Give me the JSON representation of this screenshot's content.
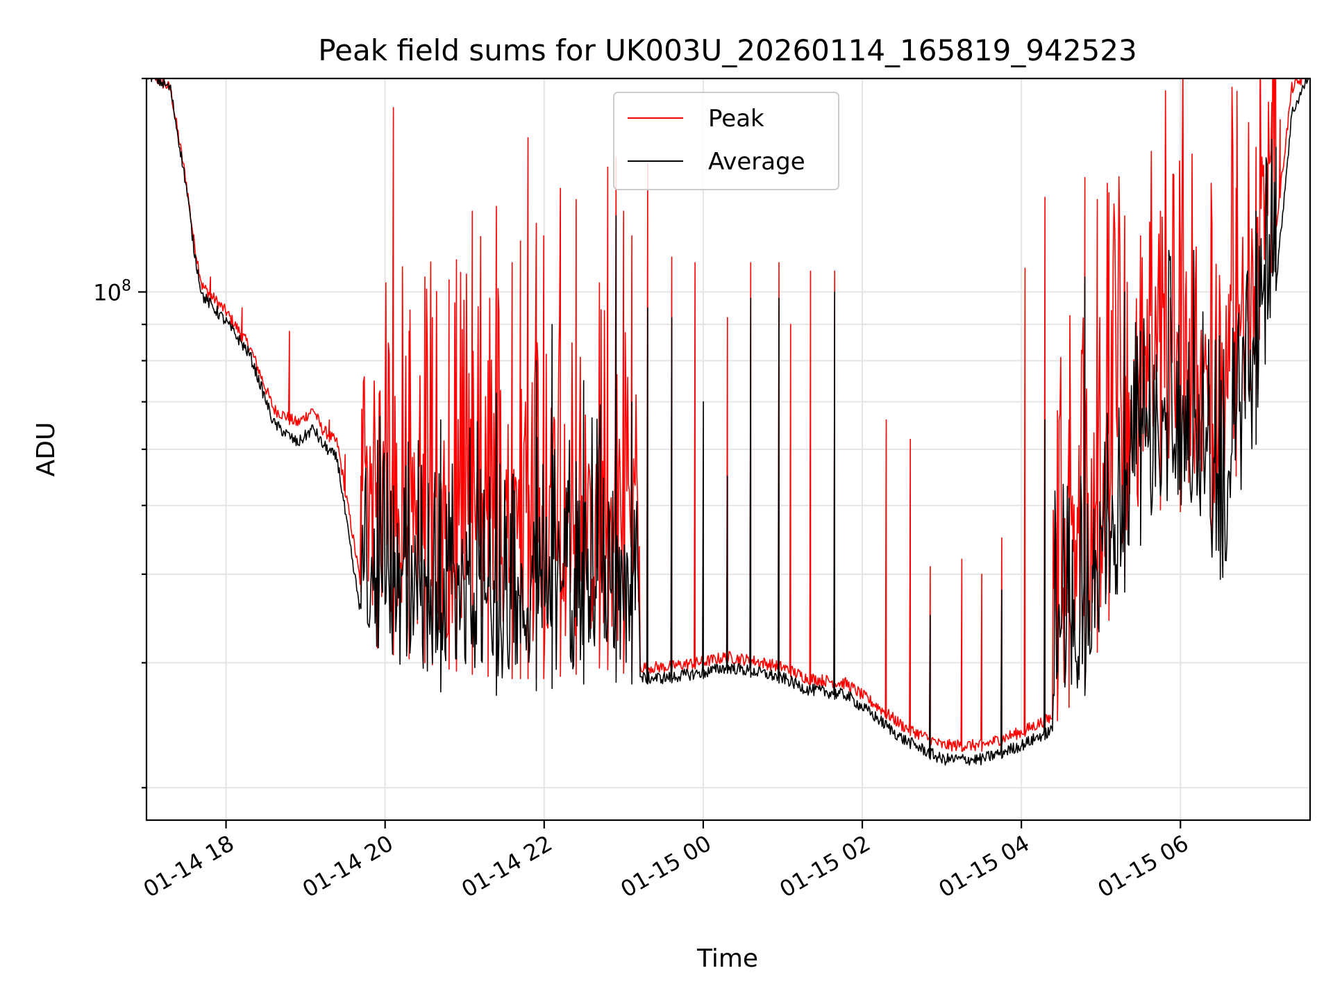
{
  "chart_data": {
    "type": "line",
    "title": "Peak field sums for UK003U_20260114_165819_942523",
    "xlabel": "Time",
    "ylabel": "ADU",
    "yscale": "log",
    "ylim": [
      18000000,
      200000000
    ],
    "xlim_hours": [
      17.0,
      31.63
    ],
    "x_ticks": [
      {
        "hour": 18,
        "label": "01-14 18"
      },
      {
        "hour": 20,
        "label": "01-14 20"
      },
      {
        "hour": 22,
        "label": "01-14 22"
      },
      {
        "hour": 24,
        "label": "01-15 00"
      },
      {
        "hour": 26,
        "label": "01-15 02"
      },
      {
        "hour": 28,
        "label": "01-15 04"
      },
      {
        "hour": 30,
        "label": "01-15 06"
      }
    ],
    "y_ticks": [
      {
        "value": 100000000,
        "base": "10",
        "exp": "8"
      }
    ],
    "grid": true,
    "legend": {
      "position": "top-center",
      "entries": [
        "Peak",
        "Average"
      ]
    },
    "series": [
      {
        "name": "Peak",
        "color": "#ff0000",
        "baseline": [
          [
            17.0,
            200000000
          ],
          [
            17.3,
            190000000
          ],
          [
            17.5,
            140000000
          ],
          [
            17.6,
            115000000
          ],
          [
            17.7,
            100000000
          ],
          [
            18.0,
            92000000
          ],
          [
            18.3,
            82000000
          ],
          [
            18.6,
            67000000
          ],
          [
            18.9,
            64000000
          ],
          [
            19.1,
            67000000
          ],
          [
            19.2,
            63000000
          ],
          [
            19.4,
            60000000
          ],
          [
            19.6,
            44000000
          ],
          [
            19.8,
            32000000
          ],
          [
            20.0,
            31000000
          ],
          [
            20.5,
            30000000
          ],
          [
            21.0,
            29000000
          ],
          [
            21.5,
            28500000
          ],
          [
            22.0,
            28500000
          ],
          [
            22.5,
            29000000
          ],
          [
            22.7,
            29500000
          ],
          [
            23.0,
            29000000
          ],
          [
            23.5,
            29000000
          ],
          [
            24.0,
            29500000
          ],
          [
            24.3,
            30000000
          ],
          [
            24.7,
            29500000
          ],
          [
            25.0,
            29000000
          ],
          [
            25.3,
            28000000
          ],
          [
            25.8,
            27500000
          ],
          [
            26.2,
            25500000
          ],
          [
            26.5,
            24000000
          ],
          [
            27.0,
            22500000
          ],
          [
            27.5,
            22500000
          ],
          [
            28.0,
            23500000
          ],
          [
            28.5,
            25000000
          ],
          [
            28.8,
            28000000
          ],
          [
            29.0,
            32000000
          ],
          [
            29.5,
            46000000
          ],
          [
            29.8,
            50000000
          ],
          [
            30.0,
            49000000
          ],
          [
            30.3,
            46000000
          ],
          [
            30.5,
            45000000
          ],
          [
            30.7,
            55000000
          ],
          [
            31.0,
            75000000
          ],
          [
            31.2,
            120000000
          ],
          [
            31.4,
            190000000
          ],
          [
            31.63,
            200000000
          ]
        ],
        "spikes": [
          [
            17.8,
            105000000
          ],
          [
            18.2,
            95000000
          ],
          [
            18.8,
            88000000
          ],
          [
            19.3,
            66000000
          ],
          [
            19.5,
            59000000
          ],
          [
            19.7,
            55000000
          ],
          [
            19.9,
            42000000
          ],
          [
            20.1,
            182000000
          ],
          [
            20.3,
            88000000
          ],
          [
            20.5,
            105000000
          ],
          [
            20.6,
            92000000
          ],
          [
            20.8,
            104000000
          ],
          [
            20.9,
            111000000
          ],
          [
            21.1,
            130000000
          ],
          [
            21.3,
            80000000
          ],
          [
            21.4,
            132000000
          ],
          [
            21.6,
            110000000
          ],
          [
            21.7,
            118000000
          ],
          [
            21.8,
            165000000
          ],
          [
            21.9,
            125000000
          ],
          [
            22.0,
            120000000
          ],
          [
            22.2,
            140000000
          ],
          [
            22.4,
            135000000
          ],
          [
            22.7,
            103000000
          ],
          [
            22.8,
            150000000
          ],
          [
            22.9,
            155000000
          ],
          [
            23.0,
            130000000
          ],
          [
            23.1,
            120000000
          ],
          [
            23.3,
            152000000
          ],
          [
            23.6,
            112000000
          ],
          [
            23.9,
            110000000
          ],
          [
            24.3,
            92000000
          ],
          [
            24.6,
            110000000
          ],
          [
            24.95,
            110000000
          ],
          [
            25.1,
            90000000
          ],
          [
            25.35,
            107000000
          ],
          [
            25.65,
            107000000
          ],
          [
            26.3,
            66000000
          ],
          [
            26.6,
            62000000
          ],
          [
            26.85,
            41000000
          ],
          [
            27.25,
            42000000
          ],
          [
            27.5,
            40000000
          ],
          [
            27.75,
            45000000
          ],
          [
            28.05,
            108000000
          ],
          [
            28.3,
            136000000
          ],
          [
            28.45,
            68000000
          ],
          [
            28.6,
            66000000
          ],
          [
            28.8,
            145000000
          ],
          [
            28.95,
            135000000
          ],
          [
            29.1,
            138000000
          ],
          [
            29.3,
            128000000
          ],
          [
            29.5,
            120000000
          ],
          [
            29.75,
            130000000
          ],
          [
            30.0,
            112000000
          ],
          [
            30.4,
            125000000
          ],
          [
            30.7,
            140000000
          ],
          [
            30.95,
            160000000
          ],
          [
            31.15,
            185000000
          ],
          [
            31.25,
            175000000
          ]
        ]
      },
      {
        "name": "Average",
        "color": "#000000",
        "baseline": [
          [
            17.0,
            200000000
          ],
          [
            17.3,
            190000000
          ],
          [
            17.5,
            138000000
          ],
          [
            17.6,
            112000000
          ],
          [
            17.7,
            97000000
          ],
          [
            18.0,
            89000000
          ],
          [
            18.3,
            80000000
          ],
          [
            18.6,
            64000000
          ],
          [
            18.9,
            60000000
          ],
          [
            19.1,
            63000000
          ],
          [
            19.2,
            60000000
          ],
          [
            19.4,
            57000000
          ],
          [
            19.6,
            40000000
          ],
          [
            19.8,
            29500000
          ],
          [
            20.0,
            28000000
          ],
          [
            20.5,
            27500000
          ],
          [
            21.0,
            27000000
          ],
          [
            21.5,
            27000000
          ],
          [
            22.0,
            27500000
          ],
          [
            22.5,
            28000000
          ],
          [
            22.7,
            28500000
          ],
          [
            23.0,
            28000000
          ],
          [
            23.5,
            28000000
          ],
          [
            24.0,
            28500000
          ],
          [
            24.3,
            29000000
          ],
          [
            24.7,
            28500000
          ],
          [
            25.0,
            28000000
          ],
          [
            25.3,
            27000000
          ],
          [
            25.8,
            26500000
          ],
          [
            26.2,
            24500000
          ],
          [
            26.5,
            23000000
          ],
          [
            27.0,
            21500000
          ],
          [
            27.5,
            21500000
          ],
          [
            28.0,
            22500000
          ],
          [
            28.5,
            24000000
          ],
          [
            28.8,
            27000000
          ],
          [
            29.0,
            30000000
          ],
          [
            29.5,
            44000000
          ],
          [
            29.8,
            48000000
          ],
          [
            30.0,
            47000000
          ],
          [
            30.3,
            44000000
          ],
          [
            30.5,
            36000000
          ],
          [
            30.7,
            44000000
          ],
          [
            31.0,
            65000000
          ],
          [
            31.2,
            100000000
          ],
          [
            31.4,
            175000000
          ],
          [
            31.63,
            200000000
          ]
        ],
        "spikes": [
          [
            20.7,
            66000000
          ],
          [
            21.4,
            72000000
          ],
          [
            21.9,
            80000000
          ],
          [
            22.1,
            90000000
          ],
          [
            22.5,
            75000000
          ],
          [
            22.9,
            128000000
          ],
          [
            23.1,
            70000000
          ],
          [
            23.3,
            95000000
          ],
          [
            23.6,
            92000000
          ],
          [
            24.0,
            70000000
          ],
          [
            24.3,
            55000000
          ],
          [
            24.6,
            98000000
          ],
          [
            24.95,
            98000000
          ],
          [
            25.65,
            100000000
          ],
          [
            26.85,
            35000000
          ],
          [
            27.75,
            38000000
          ],
          [
            28.3,
            66000000
          ],
          [
            28.8,
            105000000
          ],
          [
            29.3,
            100000000
          ],
          [
            29.5,
            88000000
          ],
          [
            30.95,
            130000000
          ],
          [
            31.2,
            160000000
          ]
        ]
      }
    ]
  }
}
